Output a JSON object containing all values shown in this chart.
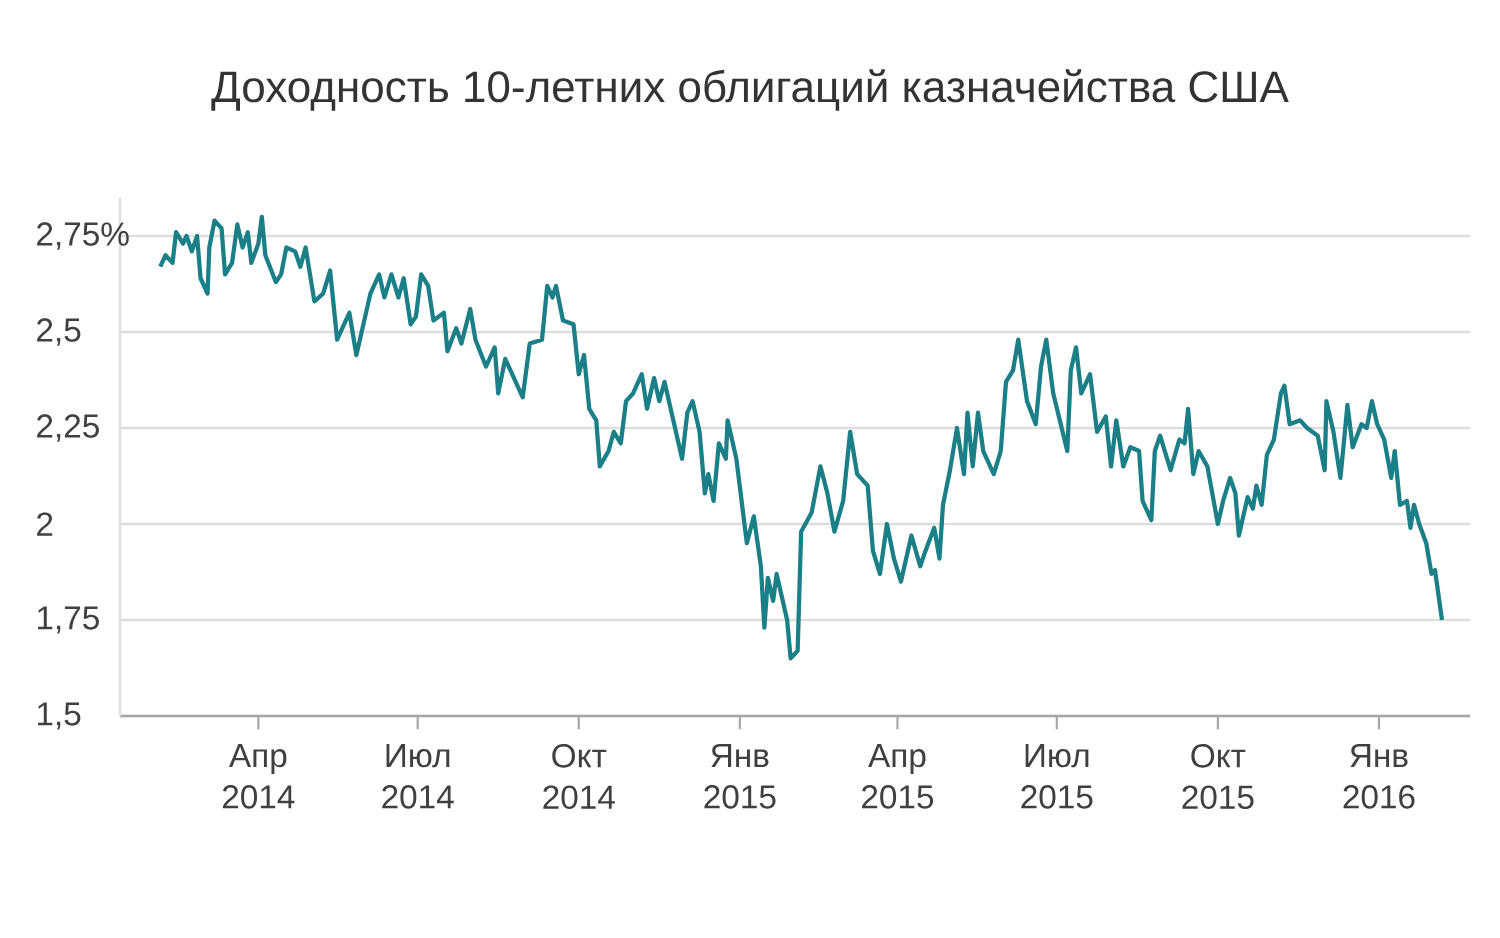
{
  "chart_data": {
    "type": "line",
    "title": "Доходность 10-летних облигаций казначейства США",
    "xlim": [
      "2014-01-12",
      "2016-02-22"
    ],
    "ylim": [
      1.5,
      2.85
    ],
    "xticks": [
      {
        "value": "2014-04-01",
        "label": "Апр 2014"
      },
      {
        "value": "2014-07-01",
        "label": "Июл 2014"
      },
      {
        "value": "2014-10-01",
        "label": "Окт 2014"
      },
      {
        "value": "2015-01-01",
        "label": "Янв 2015"
      },
      {
        "value": "2015-04-01",
        "label": "Апр 2015"
      },
      {
        "value": "2015-07-01",
        "label": "Июл 2015"
      },
      {
        "value": "2015-10-01",
        "label": "Окт 2015"
      },
      {
        "value": "2016-01-01",
        "label": "Янв 2016"
      }
    ],
    "yticks": [
      {
        "value": 1.5,
        "label": "1,5"
      },
      {
        "value": 1.75,
        "label": "1,75"
      },
      2,
      {
        "value": 2.25,
        "label": "2,25"
      },
      {
        "value": 2.5,
        "label": "2,5"
      },
      {
        "value": 2.75,
        "label": "2,75%"
      }
    ],
    "grid": "y",
    "line_style": "solid",
    "series": [
      {
        "color": "#1b7f87",
        "x": [
          "2014-02-04",
          "2014-02-07",
          "2014-02-11",
          "2014-02-13",
          "2014-02-17",
          "2014-02-19",
          "2014-02-22",
          "2014-02-25",
          "2014-02-27",
          "2014-03-03",
          "2014-03-04",
          "2014-03-07",
          "2014-03-11",
          "2014-03-13",
          "2014-03-17",
          "2014-03-20",
          "2014-03-23",
          "2014-03-26",
          "2014-03-28",
          "2014-04-01",
          "2014-04-03",
          "2014-04-05",
          "2014-04-11",
          "2014-04-14",
          "2014-04-17",
          "2014-04-22",
          "2014-04-25",
          "2014-04-28",
          "2014-05-03",
          "2014-05-08",
          "2014-05-12",
          "2014-05-16",
          "2014-05-21",
          "2014-05-23",
          "2014-05-27",
          "2014-06-04",
          "2014-06-09",
          "2014-06-12",
          "2014-06-16",
          "2014-06-20",
          "2014-06-23",
          "2014-06-27",
          "2014-06-30",
          "2014-07-03",
          "2014-07-07",
          "2014-07-10",
          "2014-07-16",
          "2014-07-18",
          "2014-07-23",
          "2014-07-26",
          "2014-07-31",
          "2014-08-03",
          "2014-08-09",
          "2014-08-14",
          "2014-08-16",
          "2014-08-20",
          "2014-08-25",
          "2014-08-30",
          "2014-09-03",
          "2014-09-10",
          "2014-09-13",
          "2014-09-16",
          "2014-09-18",
          "2014-09-22",
          "2014-09-28",
          "2014-10-01",
          "2014-10-04",
          "2014-10-07",
          "2014-10-11",
          "2014-10-13",
          "2014-10-18",
          "2014-10-21",
          "2014-10-25",
          "2014-10-28",
          "2014-11-01",
          "2014-11-06",
          "2014-11-09",
          "2014-11-13",
          "2014-11-16",
          "2014-11-19",
          "2014-11-22",
          "2014-11-29",
          "2014-12-02",
          "2014-12-05",
          "2014-12-09",
          "2014-12-12",
          "2014-12-14",
          "2014-12-17",
          "2014-12-20",
          "2014-12-24",
          "2014-12-25",
          "2014-12-30",
          "2015-01-05",
          "2015-01-09",
          "2015-01-13",
          "2015-01-15",
          "2015-01-17",
          "2015-01-20",
          "2015-01-22",
          "2015-01-25",
          "2015-01-28",
          "2015-01-30",
          "2015-02-03",
          "2015-02-05",
          "2015-02-11",
          "2015-02-16",
          "2015-02-20",
          "2015-02-24",
          "2015-03-01",
          "2015-03-05",
          "2015-03-09",
          "2015-03-15",
          "2015-03-18",
          "2015-03-22",
          "2015-03-26",
          "2015-03-30",
          "2015-04-03",
          "2015-04-06",
          "2015-04-09",
          "2015-04-14",
          "2015-04-17",
          "2015-04-22",
          "2015-04-25",
          "2015-04-27",
          "2015-05-01",
          "2015-05-05",
          "2015-05-09",
          "2015-05-11",
          "2015-05-14",
          "2015-05-17",
          "2015-05-20",
          "2015-05-26",
          "2015-05-30",
          "2015-06-02",
          "2015-06-06",
          "2015-06-09",
          "2015-06-14",
          "2015-06-19",
          "2015-06-22",
          "2015-06-25",
          "2015-06-29",
          "2015-07-07",
          "2015-07-09",
          "2015-07-12",
          "2015-07-15",
          "2015-07-20",
          "2015-07-24",
          "2015-07-29",
          "2015-08-01",
          "2015-08-04",
          "2015-08-08",
          "2015-08-12",
          "2015-08-17",
          "2015-08-19",
          "2015-08-24",
          "2015-08-26",
          "2015-08-29",
          "2015-09-04",
          "2015-09-09",
          "2015-09-12",
          "2015-09-14",
          "2015-09-17",
          "2015-09-20",
          "2015-09-25",
          "2015-10-01",
          "2015-10-04",
          "2015-10-08",
          "2015-10-11",
          "2015-10-13",
          "2015-10-18",
          "2015-10-21",
          "2015-10-23",
          "2015-10-26",
          "2015-10-29",
          "2015-11-02",
          "2015-11-06",
          "2015-11-08",
          "2015-11-11",
          "2015-11-17",
          "2015-11-21",
          "2015-11-27",
          "2015-12-01",
          "2015-12-02",
          "2015-12-06",
          "2015-12-10",
          "2015-12-14",
          "2015-12-17",
          "2015-12-22",
          "2015-12-25",
          "2015-12-28",
          "2015-12-31",
          "2016-01-04",
          "2016-01-08",
          "2016-01-10",
          "2016-01-13",
          "2016-01-17",
          "2016-01-19",
          "2016-01-21",
          "2016-01-24",
          "2016-01-28",
          "2016-01-31",
          "2016-02-02",
          "2016-02-06"
        ],
        "values": [
          2.67,
          2.7,
          2.68,
          2.76,
          2.73,
          2.75,
          2.71,
          2.75,
          2.64,
          2.6,
          2.72,
          2.79,
          2.77,
          2.65,
          2.68,
          2.78,
          2.72,
          2.76,
          2.68,
          2.73,
          2.8,
          2.7,
          2.63,
          2.65,
          2.72,
          2.71,
          2.67,
          2.72,
          2.58,
          2.6,
          2.66,
          2.48,
          2.53,
          2.55,
          2.44,
          2.6,
          2.65,
          2.59,
          2.65,
          2.59,
          2.64,
          2.52,
          2.54,
          2.65,
          2.62,
          2.53,
          2.55,
          2.45,
          2.51,
          2.47,
          2.56,
          2.48,
          2.41,
          2.46,
          2.34,
          2.43,
          2.38,
          2.33,
          2.47,
          2.48,
          2.62,
          2.59,
          2.62,
          2.53,
          2.52,
          2.39,
          2.44,
          2.3,
          2.27,
          2.15,
          2.19,
          2.24,
          2.21,
          2.32,
          2.34,
          2.39,
          2.3,
          2.38,
          2.32,
          2.37,
          2.31,
          2.17,
          2.29,
          2.32,
          2.24,
          2.08,
          2.13,
          2.06,
          2.21,
          2.17,
          2.27,
          2.17,
          1.95,
          2.02,
          1.89,
          1.73,
          1.86,
          1.8,
          1.87,
          1.81,
          1.75,
          1.65,
          1.67,
          1.98,
          2.03,
          2.15,
          2.08,
          1.98,
          2.06,
          2.24,
          2.13,
          2.1,
          1.93,
          1.87,
          2.0,
          1.91,
          1.85,
          1.91,
          1.97,
          1.89,
          1.93,
          1.99,
          1.91,
          2.05,
          2.14,
          2.25,
          2.13,
          2.29,
          2.15,
          2.29,
          2.19,
          2.13,
          2.19,
          2.37,
          2.4,
          2.48,
          2.32,
          2.26,
          2.41,
          2.48,
          2.34,
          2.19,
          2.4,
          2.46,
          2.34,
          2.39,
          2.24,
          2.28,
          2.15,
          2.27,
          2.15,
          2.2,
          2.19,
          2.06,
          2.01,
          2.19,
          2.23,
          2.14,
          2.22,
          2.21,
          2.3,
          2.13,
          2.19,
          2.15,
          2.0,
          2.06,
          2.12,
          2.08,
          1.97,
          2.07,
          2.04,
          2.1,
          2.05,
          2.18,
          2.22,
          2.34,
          2.36,
          2.26,
          2.27,
          2.25,
          2.23,
          2.14,
          2.32,
          2.24,
          2.12,
          2.31,
          2.2,
          2.26,
          2.25,
          2.32,
          2.26,
          2.22,
          2.12,
          2.19,
          2.05,
          2.06,
          1.99,
          2.05,
          2.0,
          1.95,
          1.87,
          1.88,
          1.75
        ]
      }
    ]
  }
}
